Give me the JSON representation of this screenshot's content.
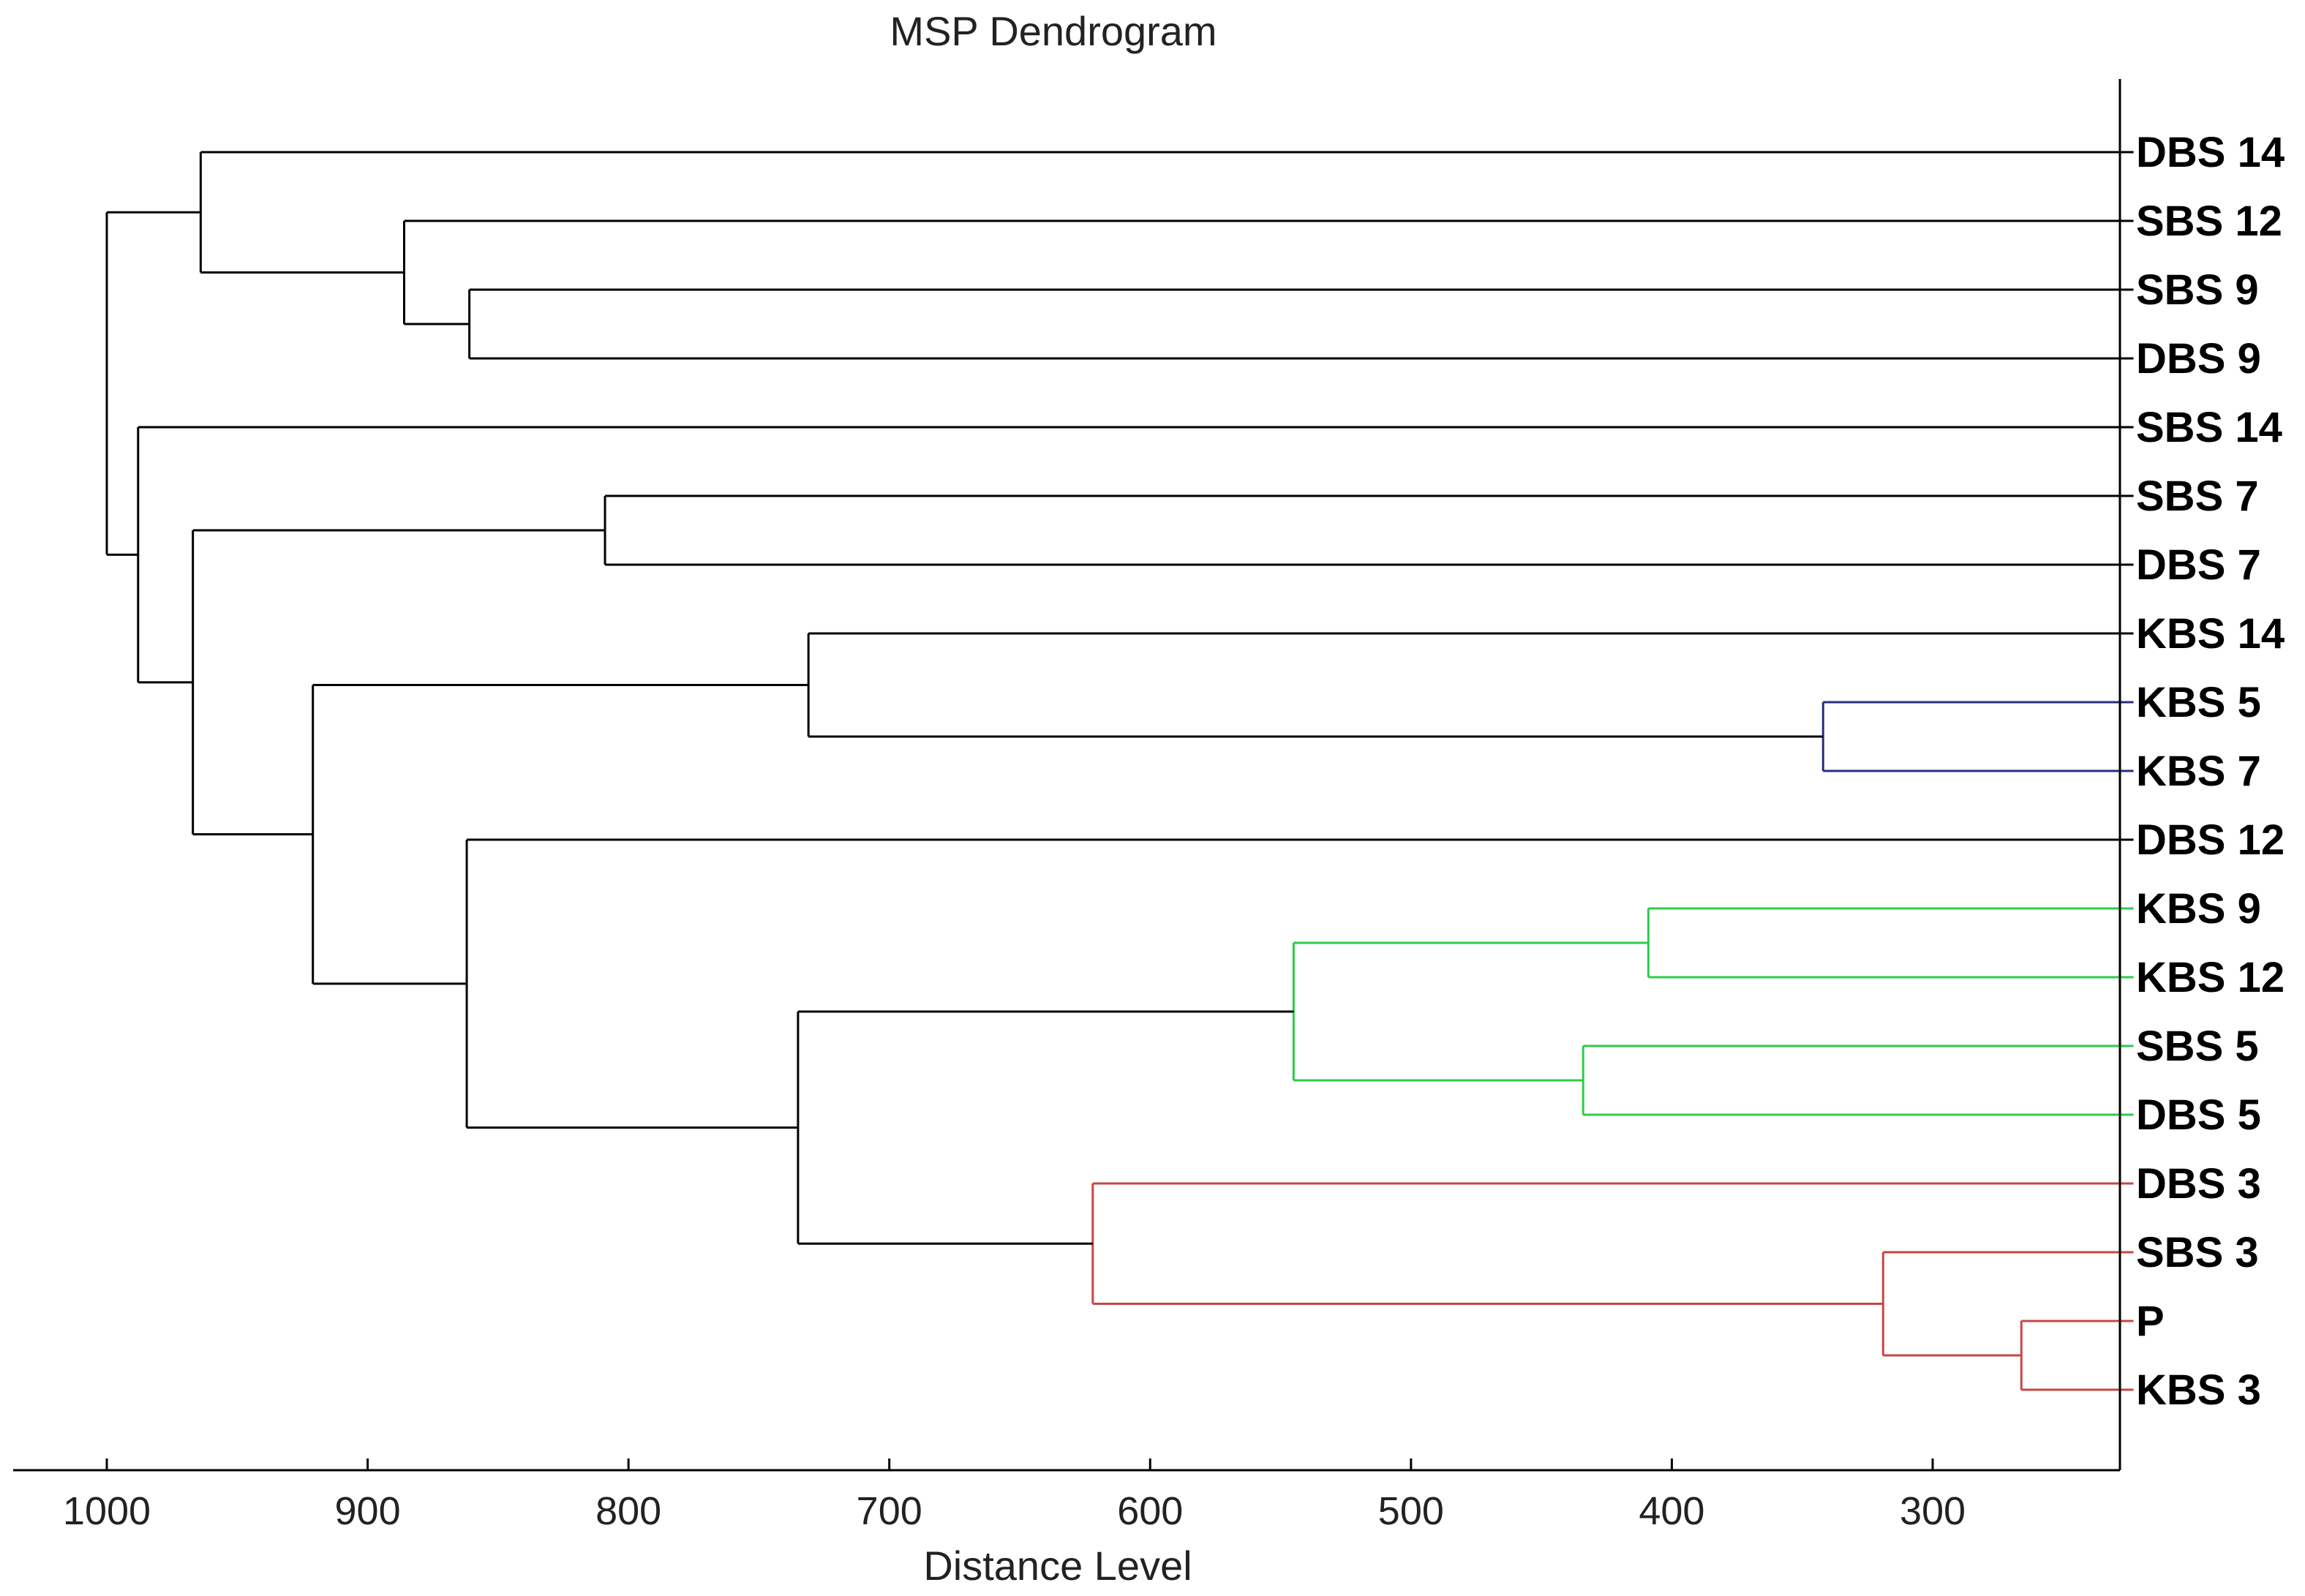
{
  "chart_data": {
    "type": "dendrogram",
    "title": "MSP Dendrogram",
    "xlabel": "Distance Level",
    "xlim": [
      1035,
      223
    ],
    "x_ticks": [
      1000,
      900,
      800,
      700,
      600,
      500,
      400,
      300
    ],
    "x_tick_labels": [
      "1000",
      "900",
      "800",
      "700",
      "600",
      "500",
      "400",
      "300"
    ],
    "colors": {
      "default": "#000000",
      "blue": "#2b2b80",
      "green": "#2dcc4a",
      "red": "#c84646"
    },
    "leaves": [
      "DBS 14",
      "SBS 12",
      "SBS 9",
      "DBS 9",
      "SBS 14",
      "SBS 7",
      "DBS 7",
      "KBS 14",
      "KBS 5",
      "KBS 7",
      "DBS 12",
      "KBS 9",
      "KBS 12",
      "SBS 5",
      "DBS 5",
      "DBS 3",
      "SBS 3",
      "P",
      "KBS 3"
    ],
    "leaf_distance": 223,
    "merges": [
      {
        "id": "n1",
        "children": [
          "KBS 5",
          "KBS 7"
        ],
        "distance": 342,
        "color": "blue"
      },
      {
        "id": "n2",
        "children": [
          "KBS 9",
          "KBS 12"
        ],
        "distance": 409,
        "color": "green"
      },
      {
        "id": "n3",
        "children": [
          "SBS 5",
          "DBS 5"
        ],
        "distance": 434,
        "color": "green"
      },
      {
        "id": "n4",
        "children": [
          "n2",
          "n3"
        ],
        "distance": 545,
        "color": "green"
      },
      {
        "id": "n5",
        "children": [
          "P",
          "KBS 3"
        ],
        "distance": 266,
        "color": "red"
      },
      {
        "id": "n6",
        "children": [
          "SBS 3",
          "n5"
        ],
        "distance": 319,
        "color": "red"
      },
      {
        "id": "n7",
        "children": [
          "DBS 3",
          "n6"
        ],
        "distance": 622,
        "color": "red"
      },
      {
        "id": "n8",
        "children": [
          "n4",
          "n7"
        ],
        "distance": 735,
        "color": "default"
      },
      {
        "id": "n9",
        "children": [
          "DBS 12",
          "n8"
        ],
        "distance": 862,
        "color": "default"
      },
      {
        "id": "n10",
        "children": [
          "KBS 14",
          "n1"
        ],
        "distance": 731,
        "color": "default"
      },
      {
        "id": "n11",
        "children": [
          "n10",
          "n9"
        ],
        "distance": 921,
        "color": "default"
      },
      {
        "id": "n12",
        "children": [
          "SBS 7",
          "DBS 7"
        ],
        "distance": 809,
        "color": "default"
      },
      {
        "id": "n13",
        "children": [
          "n12",
          "n11"
        ],
        "distance": 967,
        "color": "default"
      },
      {
        "id": "n14",
        "children": [
          "SBS 14",
          "n13"
        ],
        "distance": 988,
        "color": "default"
      },
      {
        "id": "n15",
        "children": [
          "SBS 9",
          "DBS 9"
        ],
        "distance": 861,
        "color": "default"
      },
      {
        "id": "n16",
        "children": [
          "SBS 12",
          "n15"
        ],
        "distance": 886,
        "color": "default"
      },
      {
        "id": "n17",
        "children": [
          "DBS 14",
          "n16"
        ],
        "distance": 964,
        "color": "default"
      },
      {
        "id": "n18",
        "children": [
          "n17",
          "n14"
        ],
        "distance": 1000,
        "color": "default"
      }
    ]
  }
}
